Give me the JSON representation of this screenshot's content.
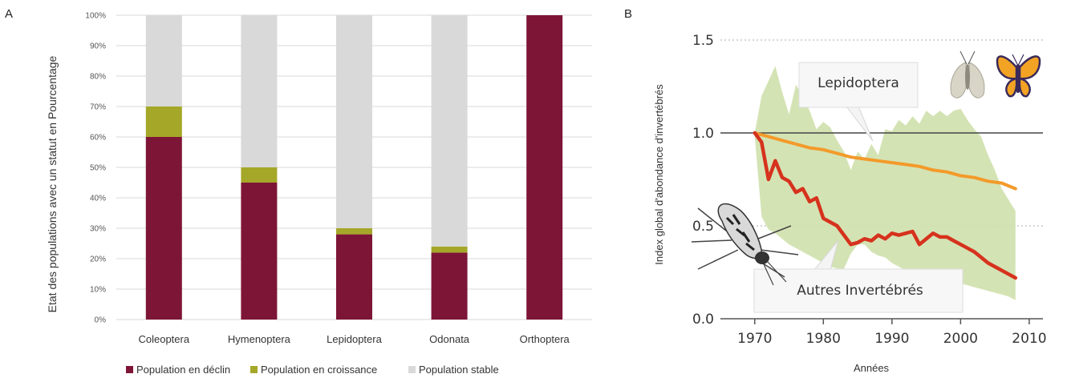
{
  "panel_a_letter": "A",
  "panel_b_letter": "B",
  "chart_data": [
    {
      "type": "bar",
      "stacked": true,
      "ylabel": "Etat des populations avec un statut en Pourcentage",
      "categories": [
        "Coleoptera",
        "Hymenoptera",
        "Lepidoptera",
        "Odonata",
        "Orthoptera"
      ],
      "yticks": [
        "0%",
        "10%",
        "20%",
        "30%",
        "40%",
        "50%",
        "60%",
        "70%",
        "80%",
        "90%",
        "100%"
      ],
      "ylim": [
        0,
        100
      ],
      "grid": true,
      "legend_position": "bottom",
      "series": [
        {
          "name": "Population en déclin",
          "color": "#7d1537",
          "values": [
            60,
            45,
            28,
            22,
            100
          ]
        },
        {
          "name": "Population en croissance",
          "color": "#a5a728",
          "values": [
            10,
            5,
            2,
            2,
            0
          ]
        },
        {
          "name": "Population stable",
          "color": "#d9d9d9",
          "values": [
            30,
            50,
            70,
            76,
            0
          ]
        }
      ]
    },
    {
      "type": "line",
      "xlabel": "Années",
      "ylabel": "Index global d'abondance d'invertébrés",
      "xlim": [
        1965,
        2012
      ],
      "ylim": [
        0,
        1.6
      ],
      "xticks": [
        "1970",
        "1980",
        "1990",
        "2000",
        "2010"
      ],
      "yticks": [
        "0.0",
        "0.5",
        "1.0",
        "1.5"
      ],
      "reference_line": 1.0,
      "dotted_gridlines": [
        0.5,
        1.5
      ],
      "band": {
        "color": "#cfe0ac",
        "x": [
          1970,
          1971,
          1972,
          1973,
          1974,
          1975,
          1976,
          1977,
          1978,
          1979,
          1980,
          1981,
          1982,
          1983,
          1984,
          1985,
          1986,
          1987,
          1988,
          1989,
          1990,
          1991,
          1992,
          1993,
          1994,
          1995,
          1996,
          1997,
          1998,
          1999,
          2000,
          2001,
          2002,
          2003,
          2004,
          2005,
          2006,
          2007,
          2008
        ],
        "upper": [
          1.0,
          1.2,
          1.28,
          1.36,
          1.22,
          1.1,
          1.26,
          1.2,
          1.12,
          1.02,
          1.06,
          1.03,
          0.96,
          0.9,
          0.8,
          0.9,
          0.86,
          0.94,
          0.88,
          1.02,
          1.01,
          1.07,
          1.04,
          1.09,
          1.05,
          1.12,
          1.09,
          1.12,
          1.09,
          1.12,
          1.13,
          1.07,
          1.02,
          0.98,
          0.88,
          0.8,
          0.7,
          0.64,
          0.58
        ],
        "lower": [
          0.98,
          0.55,
          0.48,
          0.46,
          0.43,
          0.4,
          0.38,
          0.36,
          0.34,
          0.32,
          0.3,
          0.28,
          0.27,
          0.27,
          0.35,
          0.4,
          0.4,
          0.36,
          0.34,
          0.33,
          0.3,
          0.28,
          0.26,
          0.25,
          0.25,
          0.24,
          0.23,
          0.22,
          0.21,
          0.2,
          0.19,
          0.18,
          0.17,
          0.16,
          0.15,
          0.14,
          0.13,
          0.12,
          0.1
        ]
      },
      "series": [
        {
          "name": "Lepidoptera",
          "color": "#f39a2a",
          "x": [
            1970,
            1972,
            1974,
            1976,
            1978,
            1980,
            1982,
            1984,
            1986,
            1988,
            1990,
            1992,
            1994,
            1996,
            1998,
            2000,
            2002,
            2004,
            2006,
            2008
          ],
          "y": [
            1.0,
            0.98,
            0.96,
            0.94,
            0.92,
            0.91,
            0.89,
            0.87,
            0.86,
            0.85,
            0.84,
            0.83,
            0.82,
            0.8,
            0.79,
            0.77,
            0.76,
            0.74,
            0.73,
            0.7
          ]
        },
        {
          "name": "Autres Invertébrés",
          "color": "#d6321d",
          "x": [
            1970,
            1971,
            1972,
            1973,
            1974,
            1975,
            1976,
            1977,
            1978,
            1979,
            1980,
            1981,
            1982,
            1983,
            1984,
            1985,
            1986,
            1987,
            1988,
            1989,
            1990,
            1991,
            1992,
            1993,
            1994,
            1995,
            1996,
            1997,
            1998,
            1999,
            2000,
            2001,
            2002,
            2003,
            2004,
            2005,
            2006,
            2007,
            2008
          ],
          "y": [
            1.0,
            0.95,
            0.75,
            0.85,
            0.76,
            0.74,
            0.68,
            0.7,
            0.63,
            0.65,
            0.54,
            0.52,
            0.5,
            0.45,
            0.4,
            0.41,
            0.43,
            0.42,
            0.45,
            0.43,
            0.46,
            0.45,
            0.46,
            0.47,
            0.4,
            0.43,
            0.46,
            0.44,
            0.44,
            0.42,
            0.4,
            0.38,
            0.36,
            0.33,
            0.3,
            0.28,
            0.26,
            0.24,
            0.22
          ]
        }
      ]
    }
  ]
}
